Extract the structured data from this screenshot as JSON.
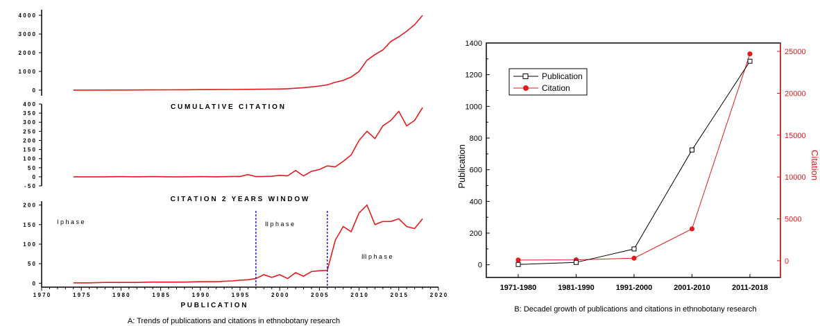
{
  "panel_a": {
    "caption": "A: Trends of publications and citations in ethnobotany research",
    "xlabel": "P U B L I C A T I O N",
    "x_ticks": [
      "1 9 7 0",
      "1 9 7 5",
      "1 9 8 0",
      "1 9 8 5",
      "1 9 9 0",
      "1 9 9 5",
      "2 0 0 0",
      "2 0 0 5",
      "2 0 1 0",
      "2 0 1 5",
      "2 0 2 0"
    ],
    "cumulative_label": "C U M U L A T I V E   C I T A T I O N",
    "window_label": "C I T A T I O N   2   Y E A R S   W I N D O W",
    "phase_labels": [
      "I p h a s e",
      "II p h a s e",
      "III p h a s e"
    ]
  },
  "panel_b": {
    "caption": "B: Decadel growth of publications and citations in ethnobotany research"
  },
  "colors": {
    "red": "#e41a1c",
    "black": "#000000",
    "blue": "#0000cc"
  },
  "chart_data": [
    {
      "type": "line",
      "panel": "A-top",
      "x_range": [
        1970,
        2020
      ],
      "ylim": [
        -300,
        4300
      ],
      "y_ticks": [
        "0",
        "1 0 0 0",
        "2 0 0 0",
        "3 0 0 0",
        "4 0 0 0"
      ],
      "x": [
        1974,
        1976,
        1978,
        1980,
        1982,
        1984,
        1986,
        1988,
        1990,
        1992,
        1994,
        1996,
        1998,
        2000,
        2001,
        2002,
        2003,
        2004,
        2005,
        2006,
        2007,
        2008,
        2009,
        2010,
        2011,
        2012,
        2013,
        2014,
        2015,
        2016,
        2017,
        2018
      ],
      "values": [
        0,
        2,
        4,
        6,
        8,
        12,
        16,
        20,
        25,
        30,
        35,
        40,
        48,
        58,
        75,
        100,
        130,
        170,
        220,
        280,
        420,
        520,
        700,
        1000,
        1600,
        1900,
        2150,
        2600,
        2850,
        3150,
        3500,
        4000
      ]
    },
    {
      "type": "line",
      "panel": "A-middle",
      "x_range": [
        1970,
        2020
      ],
      "ylim": [
        -50,
        400
      ],
      "y_ticks": [
        "- 5 0",
        "0",
        "5 0",
        "1 0 0",
        "1 5 0",
        "2 0 0",
        "2 5 0",
        "3 0 0",
        "3 5 0",
        "4 0 0"
      ],
      "x": [
        1974,
        1976,
        1978,
        1980,
        1982,
        1984,
        1986,
        1988,
        1990,
        1992,
        1994,
        1995,
        1996,
        1997,
        1998,
        1999,
        2000,
        2001,
        2002,
        2003,
        2004,
        2005,
        2006,
        2007,
        2008,
        2009,
        2010,
        2011,
        2012,
        2013,
        2014,
        2015,
        2016,
        2017,
        2018
      ],
      "values": [
        0,
        0,
        0,
        1,
        0,
        1,
        0,
        0,
        1,
        0,
        2,
        2,
        12,
        1,
        2,
        3,
        8,
        5,
        35,
        5,
        30,
        40,
        60,
        55,
        85,
        120,
        200,
        250,
        210,
        280,
        310,
        360,
        280,
        310,
        380
      ]
    },
    {
      "type": "line",
      "panel": "A-bottom",
      "x_range": [
        1970,
        2020
      ],
      "ylim": [
        -10,
        210
      ],
      "y_ticks": [
        "0",
        "5 0",
        "1 0 0",
        "1 5 0",
        "2 0 0"
      ],
      "phase_boundaries": [
        1997,
        2006
      ],
      "x": [
        1974,
        1976,
        1978,
        1980,
        1982,
        1984,
        1986,
        1988,
        1990,
        1992,
        1994,
        1995,
        1996,
        1997,
        1998,
        1999,
        2000,
        2001,
        2002,
        2003,
        2004,
        2005,
        2006,
        2007,
        2008,
        2009,
        2010,
        2011,
        2012,
        2013,
        2014,
        2015,
        2016,
        2017,
        2018
      ],
      "values": [
        1,
        1,
        2,
        2,
        2,
        3,
        3,
        3,
        4,
        4,
        6,
        8,
        9,
        12,
        22,
        15,
        22,
        12,
        27,
        18,
        30,
        32,
        33,
        110,
        145,
        132,
        180,
        200,
        150,
        158,
        158,
        165,
        145,
        140,
        165
      ]
    },
    {
      "type": "line",
      "panel": "B",
      "categories": [
        "1971-1980",
        "1981-1990",
        "1991-2000",
        "2001-2010",
        "2011-2018"
      ],
      "ylabel": "Publication",
      "ylabel_right": "Citation",
      "ylim": [
        -80,
        1400
      ],
      "y_ticks": [
        "0",
        "200",
        "400",
        "600",
        "800",
        "1000",
        "1200",
        "1400"
      ],
      "ylim_right": [
        -2000,
        26000
      ],
      "y_ticks_right": [
        "0",
        "5000",
        "10000",
        "15000",
        "20000",
        "25000"
      ],
      "legend_position": "top-left",
      "series": [
        {
          "name": "Publication",
          "axis": "left",
          "values": [
            2,
            15,
            100,
            725,
            1285
          ]
        },
        {
          "name": "Citation",
          "axis": "right",
          "values": [
            80,
            100,
            300,
            3800,
            24700
          ]
        }
      ]
    }
  ]
}
